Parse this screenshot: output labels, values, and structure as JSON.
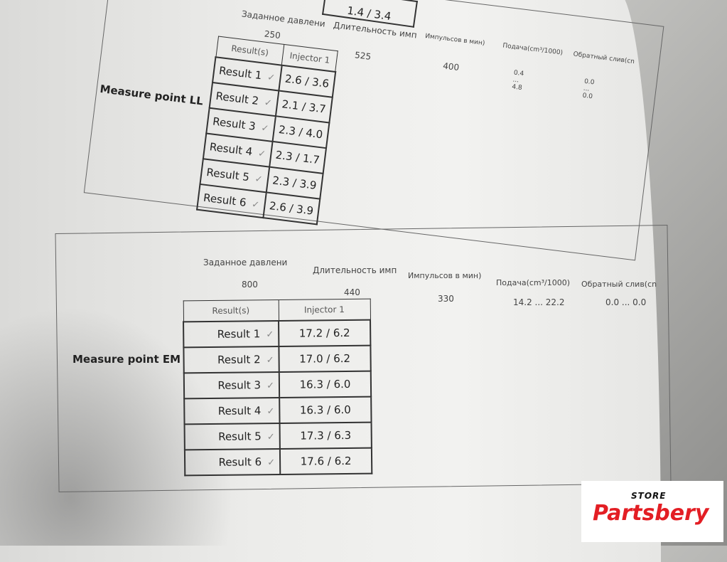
{
  "top_fragment": {
    "value": "1.4 / 3.4"
  },
  "sections": [
    {
      "title": "Measure point LL",
      "headers": [
        "Заданное давлени",
        "Длительность имп",
        "Импульсов в мин)",
        "Подача(cm³/1000)",
        "Обратный слив(cn"
      ],
      "values": [
        "250",
        "525",
        "400",
        "0.4 ... 4.8",
        "0.0 ... 0.0"
      ],
      "results_header": "Result(s)",
      "injector_header": "Injector 1",
      "rows": [
        {
          "label": "Result 1",
          "value": "2.6 / 3.6"
        },
        {
          "label": "Result 2",
          "value": "2.1 / 3.7"
        },
        {
          "label": "Result 3",
          "value": "2.3 / 4.0"
        },
        {
          "label": "Result 4",
          "value": "2.3 / 1.7"
        },
        {
          "label": "Result 5",
          "value": "2.3 / 3.9"
        },
        {
          "label": "Result 6",
          "value": "2.6 / 3.9"
        }
      ]
    },
    {
      "title": "Measure point EM",
      "headers": [
        "Заданное давлени",
        "Длительность имп",
        "Импульсов в мин)",
        "Подача(cm³/1000)",
        "Обратный слив(cn"
      ],
      "values": [
        "800",
        "440",
        "330",
        "14.2 ... 22.2",
        "0.0 ... 0.0"
      ],
      "results_header": "Result(s)",
      "injector_header": "Injector 1",
      "rows": [
        {
          "label": "Result 1",
          "value": "17.2 / 6.2"
        },
        {
          "label": "Result 2",
          "value": "17.0 / 6.2"
        },
        {
          "label": "Result 3",
          "value": "16.3 / 6.0"
        },
        {
          "label": "Result 4",
          "value": "16.3 / 6.0"
        },
        {
          "label": "Result 5",
          "value": "17.3 / 6.3"
        },
        {
          "label": "Result 6",
          "value": "17.6 / 6.2"
        }
      ]
    }
  ],
  "check_icon": "✓",
  "watermark": {
    "store": "STORE",
    "brand": "Partsbery",
    "accent": "#e31e24"
  }
}
